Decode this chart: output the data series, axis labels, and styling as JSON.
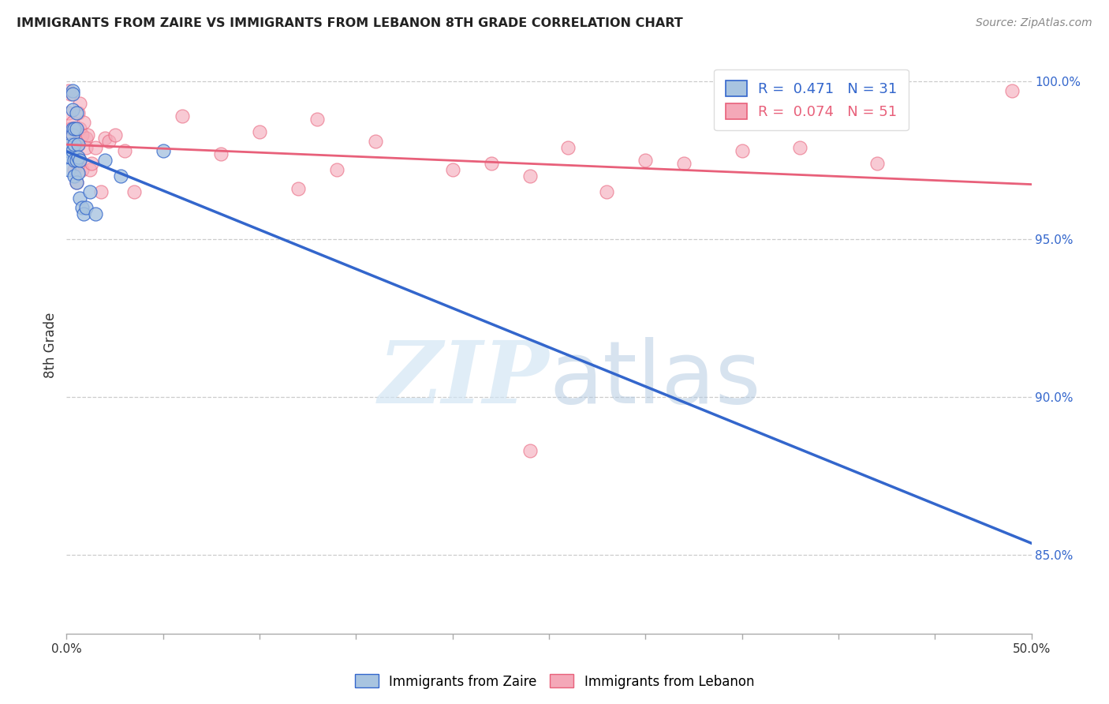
{
  "title": "IMMIGRANTS FROM ZAIRE VS IMMIGRANTS FROM LEBANON 8TH GRADE CORRELATION CHART",
  "source": "Source: ZipAtlas.com",
  "ylabel": "8th Grade",
  "right_yticks": [
    "100.0%",
    "95.0%",
    "90.0%",
    "85.0%"
  ],
  "right_ytick_vals": [
    1.0,
    0.95,
    0.9,
    0.85
  ],
  "legend_blue_r": "0.471",
  "legend_blue_n": "31",
  "legend_pink_r": "0.074",
  "legend_pink_n": "51",
  "legend_blue_label": "Immigrants from Zaire",
  "legend_pink_label": "Immigrants from Lebanon",
  "blue_color": "#A8C4E0",
  "pink_color": "#F4A8B8",
  "trendline_blue": "#3366CC",
  "trendline_pink": "#E8607A",
  "xlim": [
    0.0,
    0.5
  ],
  "ylim": [
    0.825,
    1.008
  ],
  "blue_x": [
    0.001,
    0.001,
    0.002,
    0.002,
    0.003,
    0.003,
    0.003,
    0.003,
    0.003,
    0.003,
    0.004,
    0.004,
    0.004,
    0.004,
    0.005,
    0.005,
    0.005,
    0.005,
    0.006,
    0.006,
    0.006,
    0.007,
    0.007,
    0.008,
    0.009,
    0.01,
    0.012,
    0.015,
    0.02,
    0.028,
    0.05
  ],
  "blue_y": [
    0.972,
    0.978,
    0.98,
    0.976,
    0.997,
    0.996,
    0.991,
    0.985,
    0.983,
    0.978,
    0.985,
    0.98,
    0.975,
    0.97,
    0.99,
    0.985,
    0.975,
    0.968,
    0.98,
    0.976,
    0.971,
    0.975,
    0.963,
    0.96,
    0.958,
    0.96,
    0.965,
    0.958,
    0.975,
    0.97,
    0.978
  ],
  "pink_x": [
    0.001,
    0.001,
    0.002,
    0.002,
    0.003,
    0.003,
    0.003,
    0.004,
    0.004,
    0.004,
    0.005,
    0.005,
    0.005,
    0.006,
    0.006,
    0.007,
    0.007,
    0.007,
    0.008,
    0.008,
    0.009,
    0.01,
    0.01,
    0.011,
    0.012,
    0.013,
    0.015,
    0.018,
    0.02,
    0.022,
    0.025,
    0.03,
    0.035,
    0.06,
    0.08,
    0.1,
    0.12,
    0.13,
    0.14,
    0.16,
    0.2,
    0.22,
    0.24,
    0.26,
    0.28,
    0.3,
    0.32,
    0.35,
    0.38,
    0.42,
    0.49
  ],
  "pink_y": [
    0.997,
    0.99,
    0.996,
    0.985,
    0.987,
    0.983,
    0.98,
    0.985,
    0.978,
    0.972,
    0.98,
    0.974,
    0.968,
    0.99,
    0.98,
    0.993,
    0.985,
    0.975,
    0.983,
    0.972,
    0.987,
    0.982,
    0.979,
    0.983,
    0.972,
    0.974,
    0.979,
    0.965,
    0.982,
    0.981,
    0.983,
    0.978,
    0.965,
    0.989,
    0.977,
    0.984,
    0.966,
    0.988,
    0.972,
    0.981,
    0.972,
    0.974,
    0.97,
    0.979,
    0.965,
    0.975,
    0.974,
    0.978,
    0.979,
    0.974,
    0.997
  ],
  "pink_outlier_x": [
    0.24
  ],
  "pink_outlier_y": [
    0.883
  ]
}
